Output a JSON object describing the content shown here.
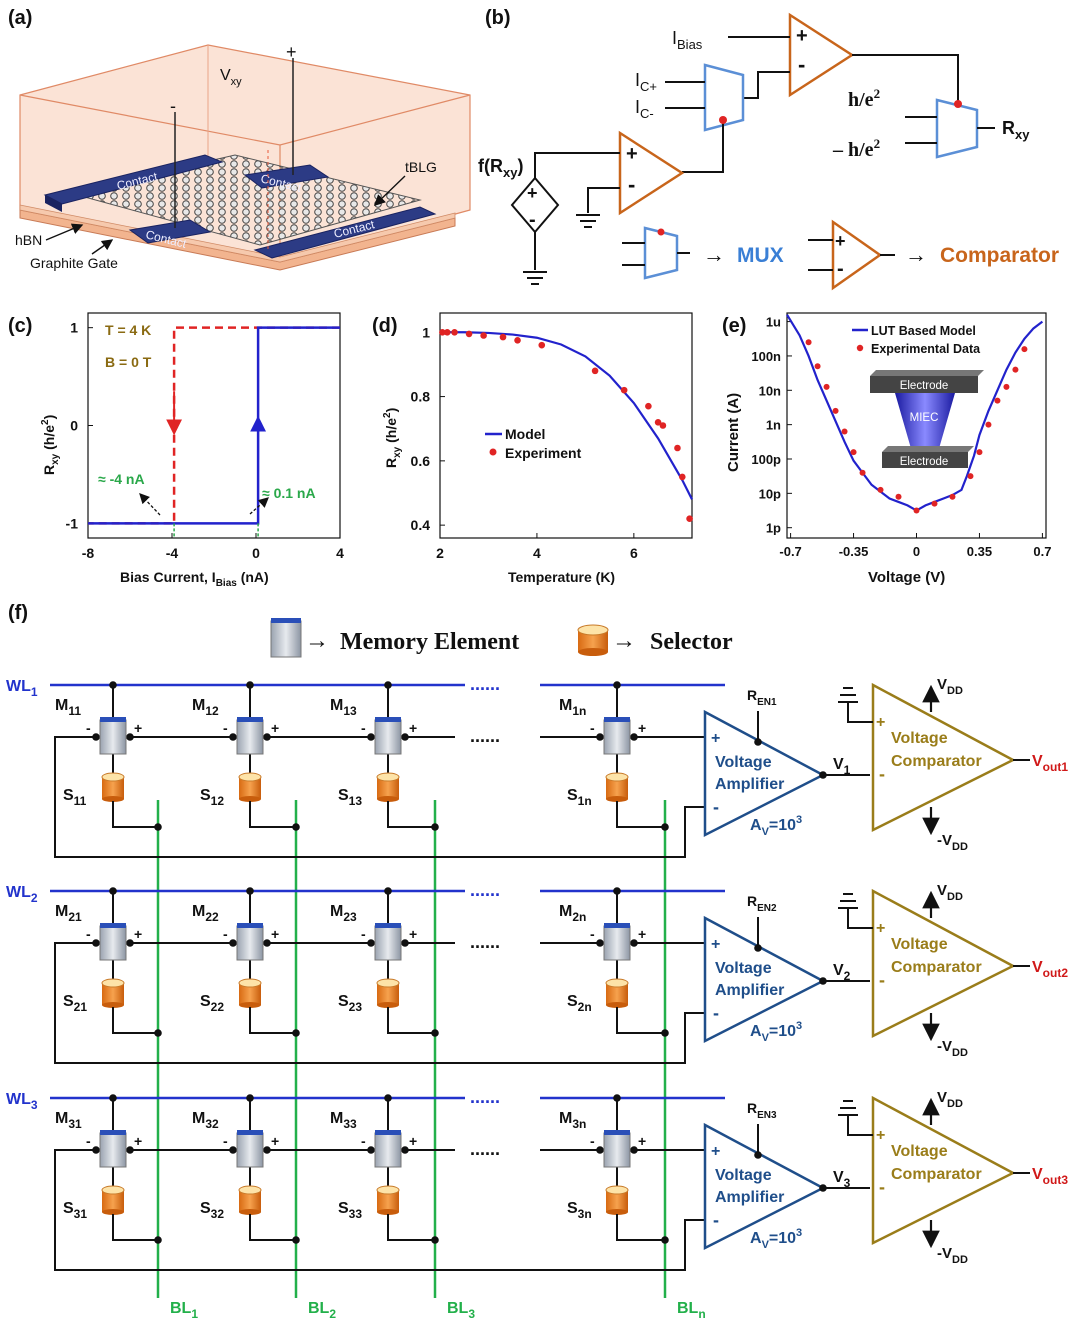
{
  "panel_labels": {
    "a": "(a)",
    "b": "(b)",
    "c": "(c)",
    "d": "(d)",
    "e": "(e)",
    "f": "(f)"
  },
  "panel_a": {
    "vxy": "V",
    "vxy_sub": "xy",
    "plus": "+",
    "minus": "-",
    "contact": "Contact",
    "tblg": "tBLG",
    "hbn": "hBN",
    "graphite_gate": "Graphite Gate"
  },
  "panel_b": {
    "ibias": "I",
    "ibias_sub": "Bias",
    "icp": "I",
    "icp_sub": "C+",
    "icm": "I",
    "icm_sub": "C-",
    "frxy": "f(R",
    "frxy_sub": "xy",
    "frxy_close": ")",
    "h_e2": "h/e",
    "h_e2_pow": "2",
    "minus_h_e2": "– h/e",
    "rxy": "R",
    "rxy_sub": "xy",
    "mux": "MUX",
    "comparator": "Comparator",
    "arrow": "→",
    "colors": {
      "mux": "#3a7fd5",
      "comparator": "#c8651b",
      "opamp": "#c8651b",
      "mux_shape": "#5b8fd6"
    }
  },
  "chart_data": [
    {
      "id": "c",
      "type": "line",
      "xlabel": "Bias Current, I",
      "xlabel_sub": "Bias",
      "xlabel_unit": " (nA)",
      "ylabel": "R",
      "ylabel_sub": "xy",
      "ylabel_unit": " (h/e",
      "ylabel_pow": "2",
      "ylabel_close": ")",
      "xlim": [
        -8,
        4
      ],
      "ylim": [
        -1.15,
        1.15
      ],
      "xticks": [
        -8,
        -4,
        0,
        4
      ],
      "yticks": [
        -1,
        0,
        1
      ],
      "annotations": [
        "T = 4 K",
        "B = 0 T",
        "≈ -4 nA",
        "≈ 0.1 nA"
      ],
      "series": [
        {
          "style": "dashed",
          "color": "#e02424",
          "x": [
            4,
            -3.9,
            -3.9,
            -8
          ],
          "y": [
            1,
            1,
            -1,
            -1
          ]
        },
        {
          "style": "solid",
          "color": "#2222cc",
          "x": [
            -8,
            0.1,
            0.1,
            4
          ],
          "y": [
            -1,
            -1,
            1,
            1
          ]
        }
      ]
    },
    {
      "id": "d",
      "type": "line",
      "xlabel": "Temperature (K)",
      "ylabel": "R",
      "ylabel_sub": "xy",
      "ylabel_unit": " (h/e",
      "ylabel_pow": "2",
      "ylabel_close": ")",
      "xlim": [
        2,
        7.2
      ],
      "ylim": [
        0.36,
        1.06
      ],
      "xticks": [
        2,
        4,
        6
      ],
      "yticks": [
        0.4,
        0.6,
        0.8,
        1
      ],
      "legend": [
        {
          "name": "Model",
          "style": "line",
          "color": "#2222cc"
        },
        {
          "name": "Experiment",
          "style": "dot",
          "color": "#e02424"
        }
      ],
      "model": {
        "x": [
          2,
          2.5,
          3,
          3.5,
          4,
          4.5,
          5,
          5.5,
          6,
          6.5,
          7,
          7.2
        ],
        "y": [
          1.0,
          1.0,
          0.998,
          0.993,
          0.983,
          0.962,
          0.925,
          0.865,
          0.78,
          0.67,
          0.54,
          0.48
        ]
      },
      "experiment": {
        "x": [
          2.05,
          2.15,
          2.3,
          2.6,
          2.9,
          3.3,
          3.6,
          4.1,
          5.2,
          5.8,
          6.3,
          6.5,
          6.6,
          6.9,
          7.0,
          7.15
        ],
        "y": [
          1.0,
          1.0,
          1.0,
          0.995,
          0.99,
          0.985,
          0.975,
          0.96,
          0.88,
          0.82,
          0.77,
          0.72,
          0.71,
          0.64,
          0.55,
          0.42
        ]
      }
    },
    {
      "id": "e",
      "type": "line",
      "xlabel": "Voltage (V)",
      "ylabel": "Current (A)",
      "xlim": [
        -0.72,
        0.72
      ],
      "ylim_log10": [
        -12.3,
        -5.75
      ],
      "xticks": [
        -0.7,
        -0.35,
        0,
        0.35,
        0.7
      ],
      "xtick_labels": [
        "-0.7",
        "-0.35",
        "0",
        "0.35",
        "0.7"
      ],
      "yticks_log10": [
        -12,
        -11,
        -10,
        -9,
        -8,
        -7,
        -6
      ],
      "ytick_labels": [
        "1p",
        "10p",
        "100p",
        "1n",
        "10n",
        "100n",
        "1u"
      ],
      "legend": [
        {
          "name": "LUT Based Model",
          "style": "line",
          "color": "#2222cc"
        },
        {
          "name": "Experimental Data",
          "style": "dot",
          "color": "#e02424"
        }
      ],
      "inset": {
        "top": "Electrode",
        "middle": "MIEC",
        "bottom": "Electrode"
      },
      "model": {
        "x": [
          -0.72,
          -0.65,
          -0.6,
          -0.55,
          -0.5,
          -0.45,
          -0.4,
          -0.35,
          -0.3,
          -0.25,
          -0.2,
          -0.15,
          -0.1,
          -0.05,
          0,
          0.05,
          0.1,
          0.15,
          0.2,
          0.25,
          0.28,
          0.32,
          0.35,
          0.4,
          0.45,
          0.5,
          0.55,
          0.6,
          0.65,
          0.7
        ],
        "log_y": [
          -5.8,
          -6.4,
          -7.0,
          -7.7,
          -8.3,
          -8.9,
          -9.5,
          -10.05,
          -10.4,
          -10.75,
          -10.95,
          -11.15,
          -11.25,
          -11.35,
          -11.5,
          -11.35,
          -11.25,
          -11.15,
          -11.05,
          -10.9,
          -10.5,
          -9.9,
          -9.3,
          -8.6,
          -8.0,
          -7.4,
          -6.9,
          -6.5,
          -6.2,
          -6.0
        ]
      },
      "experiment": {
        "x": [
          -0.6,
          -0.55,
          -0.5,
          -0.45,
          -0.4,
          -0.35,
          -0.3,
          -0.2,
          -0.1,
          0,
          0.1,
          0.2,
          0.3,
          0.35,
          0.4,
          0.45,
          0.5,
          0.55,
          0.6
        ],
        "log_y": [
          -6.6,
          -7.3,
          -7.9,
          -8.6,
          -9.2,
          -9.8,
          -10.4,
          -10.9,
          -11.1,
          -11.5,
          -11.3,
          -11.1,
          -10.5,
          -9.8,
          -9.0,
          -8.3,
          -7.9,
          -7.4,
          -6.8
        ]
      }
    }
  ],
  "panel_f": {
    "legend_memory": "Memory Element",
    "legend_selector": "Selector",
    "legend_arrow": "→",
    "rows": [
      {
        "wl": "WL",
        "wl_sub": "1",
        "ren": "R",
        "ren_sub": "EN1",
        "v": "V",
        "v_sub": "1",
        "vout": "V",
        "vout_sub": "out1",
        "m": [
          {
            "t": "M",
            "s": "11"
          },
          {
            "t": "M",
            "s": "12"
          },
          {
            "t": "M",
            "s": "13"
          },
          {
            "t": "M",
            "s": "1n"
          }
        ],
        "sel": [
          {
            "t": "S",
            "s": "11"
          },
          {
            "t": "S",
            "s": "12"
          },
          {
            "t": "S",
            "s": "13"
          },
          {
            "t": "S",
            "s": "1n"
          }
        ]
      },
      {
        "wl": "WL",
        "wl_sub": "2",
        "ren": "R",
        "ren_sub": "EN2",
        "v": "V",
        "v_sub": "2",
        "vout": "V",
        "vout_sub": "out2",
        "m": [
          {
            "t": "M",
            "s": "21"
          },
          {
            "t": "M",
            "s": "22"
          },
          {
            "t": "M",
            "s": "23"
          },
          {
            "t": "M",
            "s": "2n"
          }
        ],
        "sel": [
          {
            "t": "S",
            "s": "21"
          },
          {
            "t": "S",
            "s": "22"
          },
          {
            "t": "S",
            "s": "23"
          },
          {
            "t": "S",
            "s": "2n"
          }
        ]
      },
      {
        "wl": "WL",
        "wl_sub": "3",
        "ren": "R",
        "ren_sub": "EN3",
        "v": "V",
        "v_sub": "3",
        "vout": "V",
        "vout_sub": "out3",
        "m": [
          {
            "t": "M",
            "s": "31"
          },
          {
            "t": "M",
            "s": "32"
          },
          {
            "t": "M",
            "s": "33"
          },
          {
            "t": "M",
            "s": "3n"
          }
        ],
        "sel": [
          {
            "t": "S",
            "s": "31"
          },
          {
            "t": "S",
            "s": "32"
          },
          {
            "t": "S",
            "s": "33"
          },
          {
            "t": "S",
            "s": "3n"
          }
        ]
      }
    ],
    "bitlines": [
      {
        "t": "BL",
        "s": "1"
      },
      {
        "t": "BL",
        "s": "2"
      },
      {
        "t": "BL",
        "s": "3"
      },
      {
        "t": "BL",
        "s": "n"
      }
    ],
    "amp_line1": "Voltage",
    "amp_line2": "Amplifier",
    "gain": "A",
    "gain_sub": "V",
    "gain_val": "=10",
    "gain_pow": "3",
    "comp_line1": "Voltage",
    "comp_line2": "Comparator",
    "vdd": "V",
    "vdd_sub": "DD",
    "neg_vdd": "-V",
    "dots": "......",
    "plus": "+",
    "minus": "-",
    "colors": {
      "wordline": "#2233cc",
      "bitline": "#22b04a",
      "amp": "#1f4e8a",
      "comp": "#9a7d1a",
      "vout": "#d01818"
    }
  }
}
